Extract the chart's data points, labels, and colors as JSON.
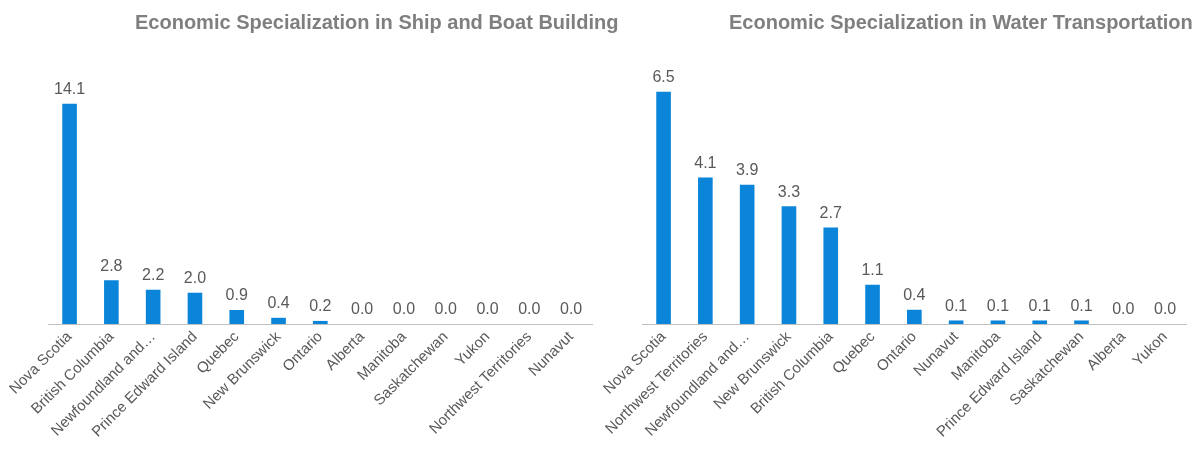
{
  "chart_data": [
    {
      "type": "bar",
      "title": "Economic Specialization in Ship and Boat Building",
      "categories": [
        "Nova Scotia",
        "British Columbia",
        "Newfoundland and…",
        "Prince Edward Island",
        "Quebec",
        "New Brunswick",
        "Ontario",
        "Alberta",
        "Manitoba",
        "Saskatchewan",
        "Yukon",
        "Northwest Territories",
        "Nunavut"
      ],
      "values": [
        14.1,
        2.8,
        2.2,
        2.0,
        0.9,
        0.4,
        0.2,
        0,
        0,
        0,
        0,
        0,
        0
      ],
      "value_labels": [
        "14.1",
        "2.8",
        "2.2",
        "2.0",
        "0.9",
        "0.4",
        "0.2",
        "0.0",
        "0.0",
        "0.0",
        "0.0",
        "0.0",
        "0.0"
      ],
      "color": "#0a85d9",
      "grid": false,
      "legend": false,
      "tick_labels": "x"
    },
    {
      "type": "bar",
      "title": "Economic Specialization in Water Transportation",
      "categories": [
        "Nova Scotia",
        "Northwest Territories",
        "Newfoundland and…",
        "New Brunswick",
        "British Columbia",
        "Quebec",
        "Ontario",
        "Nunavut",
        "Manitoba",
        "Prince Edward Island",
        "Saskatchewan",
        "Alberta",
        "Yukon"
      ],
      "values": [
        6.5,
        4.1,
        3.9,
        3.3,
        2.7,
        1.1,
        0.4,
        0.1,
        0.1,
        0.1,
        0.1,
        0,
        0
      ],
      "value_labels": [
        "6.5",
        "4.1",
        "3.9",
        "3.3",
        "2.7",
        "1.1",
        "0.4",
        "0.1",
        "0.1",
        "0.1",
        "0.1",
        "0.0",
        "0.0"
      ],
      "color": "#0a85d9",
      "grid": false,
      "legend": false,
      "tick_labels": "x"
    }
  ]
}
